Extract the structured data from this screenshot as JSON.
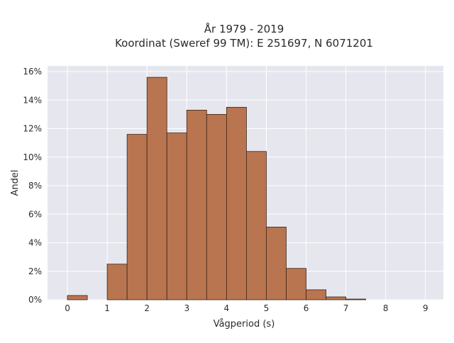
{
  "chart_data": {
    "type": "bar",
    "title_line1": "År 1979 - 2019",
    "title_line2": "Koordinat (Sweref 99 TM): E 251697, N 6071201",
    "xlabel": "Vågperiod (s)",
    "ylabel": "Andel",
    "xlim": [
      -0.5,
      9.45
    ],
    "ylim": [
      0,
      16.4
    ],
    "x_ticks": [
      0,
      1,
      2,
      3,
      4,
      5,
      6,
      7,
      8,
      9
    ],
    "x_tick_labels": [
      "0",
      "1",
      "2",
      "3",
      "4",
      "5",
      "6",
      "7",
      "8",
      "9"
    ],
    "y_ticks": [
      0,
      2,
      4,
      6,
      8,
      10,
      12,
      14,
      16
    ],
    "y_tick_labels": [
      "0%",
      "2%",
      "4%",
      "6%",
      "8%",
      "10%",
      "12%",
      "14%",
      "16%"
    ],
    "bin_width": 0.5,
    "bins": [
      {
        "start": 0.0,
        "end": 0.5,
        "value": 0.3
      },
      {
        "start": 0.5,
        "end": 1.0,
        "value": 0.0
      },
      {
        "start": 1.0,
        "end": 1.5,
        "value": 2.5
      },
      {
        "start": 1.5,
        "end": 2.0,
        "value": 11.6
      },
      {
        "start": 2.0,
        "end": 2.5,
        "value": 15.6
      },
      {
        "start": 2.5,
        "end": 3.0,
        "value": 11.7
      },
      {
        "start": 3.0,
        "end": 3.5,
        "value": 13.3
      },
      {
        "start": 3.5,
        "end": 4.0,
        "value": 13.0
      },
      {
        "start": 4.0,
        "end": 4.5,
        "value": 13.5
      },
      {
        "start": 4.5,
        "end": 5.0,
        "value": 10.4
      },
      {
        "start": 5.0,
        "end": 5.5,
        "value": 5.1
      },
      {
        "start": 5.5,
        "end": 6.0,
        "value": 2.2
      },
      {
        "start": 6.0,
        "end": 6.5,
        "value": 0.7
      },
      {
        "start": 6.5,
        "end": 7.0,
        "value": 0.2
      },
      {
        "start": 7.0,
        "end": 7.5,
        "value": 0.05
      }
    ],
    "grid": true,
    "colors": {
      "bar_fill": "#b9754f",
      "bar_edge": "#3b2418",
      "plot_background": "#e6e6ef",
      "grid": "#ffffff"
    }
  }
}
